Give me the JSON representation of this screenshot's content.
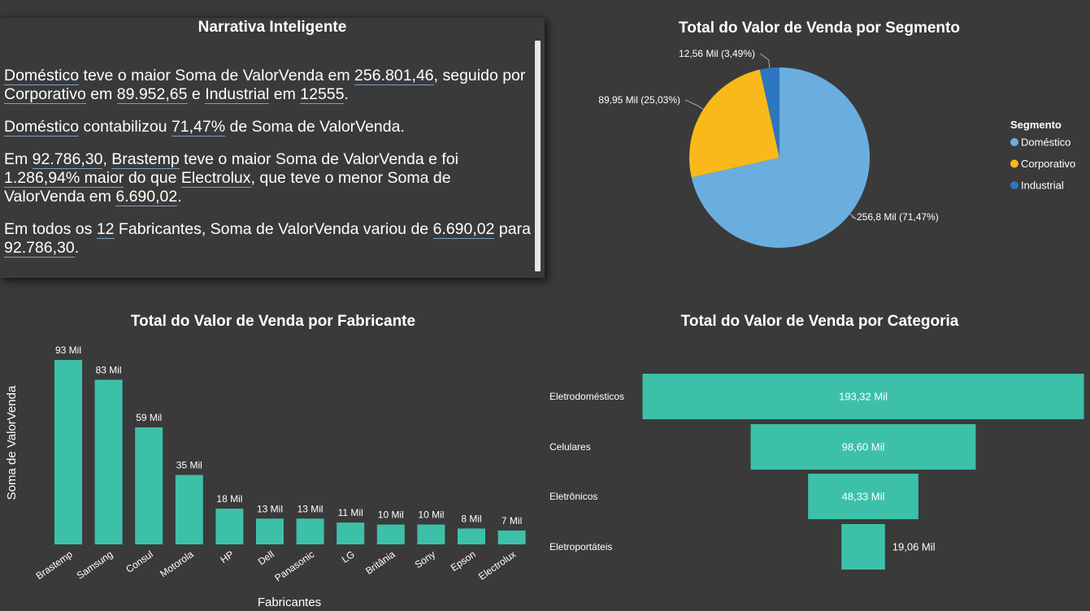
{
  "narrative": {
    "title": "Narrativa Inteligente",
    "p1": {
      "s1": "Doméstico",
      "t1": " teve o maior Soma de ValorVenda em ",
      "v1": "256.801,46",
      "t2": ", seguido por ",
      "s2": "Corporativo",
      "t3": " em ",
      "v2": "89.952,65",
      "t4": " e ",
      "s3": "Industrial",
      "t5": " em ",
      "v3": "12555",
      "t6": "."
    },
    "p2": {
      "s1": "Doméstico",
      "t1": " contabilizou ",
      "v1": "71,47%",
      "t2": " de Soma de ValorVenda."
    },
    "p3": {
      "t0": "Em ",
      "v1": "92.786,30",
      "t1": ", ",
      "s1": "Brastemp",
      "t2": " teve o maior Soma de ValorVenda e foi ",
      "v2": "1.286,94% maior",
      "t3": " do que ",
      "s2": "Electrolux",
      "t4": ", que teve o menor Soma de ValorVenda em ",
      "v3": "6.690,02",
      "t5": "."
    },
    "p4": {
      "t0": "Em todos os ",
      "v1": "12",
      "t1": " Fabricantes, Soma de ValorVenda variou de ",
      "v2": "6.690,02",
      "t2": " para ",
      "v3": "92.786,30",
      "t3": "."
    }
  },
  "pie": {
    "title": "Total do Valor de Venda por Segmento",
    "legend_title": "Segmento",
    "chart_data": {
      "type": "pie",
      "title": "Total do Valor de Venda por Segmento",
      "slices": [
        {
          "name": "Doméstico",
          "value": 256.8,
          "percent": 71.47,
          "label": "256,8 Mil (71,47%)",
          "color": "#6aaee0"
        },
        {
          "name": "Corporativo",
          "value": 89.95,
          "percent": 25.03,
          "label": "89,95 Mil (25,03%)",
          "color": "#f9b91a"
        },
        {
          "name": "Industrial",
          "value": 12.56,
          "percent": 3.49,
          "label": "12,56 Mil (3,49%)",
          "color": "#2c77bf"
        }
      ]
    }
  },
  "bar": {
    "title": "Total do Valor de Venda por Fabricante",
    "chart_data": {
      "type": "bar",
      "title": "Total do Valor de Venda por Fabricante",
      "xlabel": "Fabricantes",
      "ylabel": "Soma de ValorVenda",
      "categories": [
        "Brastemp",
        "Samsung",
        "Consul",
        "Motorola",
        "HP",
        "Dell",
        "Panasonic",
        "LG",
        "Britânia",
        "Sony",
        "Epson",
        "Electrolux"
      ],
      "values": [
        93,
        83,
        59,
        35,
        18,
        13,
        13,
        11,
        10,
        10,
        8,
        7
      ],
      "labels": [
        "93 Mil",
        "83 Mil",
        "59 Mil",
        "35 Mil",
        "18 Mil",
        "13 Mil",
        "13 Mil",
        "11 Mil",
        "10 Mil",
        "10 Mil",
        "8 Mil",
        "7 Mil"
      ],
      "color": "#3cc1a8",
      "ylim": [
        0,
        93
      ]
    }
  },
  "funnel": {
    "title": "Total do Valor de Venda por Categoria",
    "chart_data": {
      "type": "funnel",
      "title": "Total do Valor de Venda por Categoria",
      "categories": [
        "Eletrodomésticos",
        "Celulares",
        "Eletrônicos",
        "Eletroportáteis"
      ],
      "values": [
        193.32,
        98.6,
        48.33,
        19.06
      ],
      "labels": [
        "193,32 Mil",
        "98,60 Mil",
        "48,33 Mil",
        "19,06 Mil"
      ],
      "color": "#3cc1a8"
    }
  }
}
